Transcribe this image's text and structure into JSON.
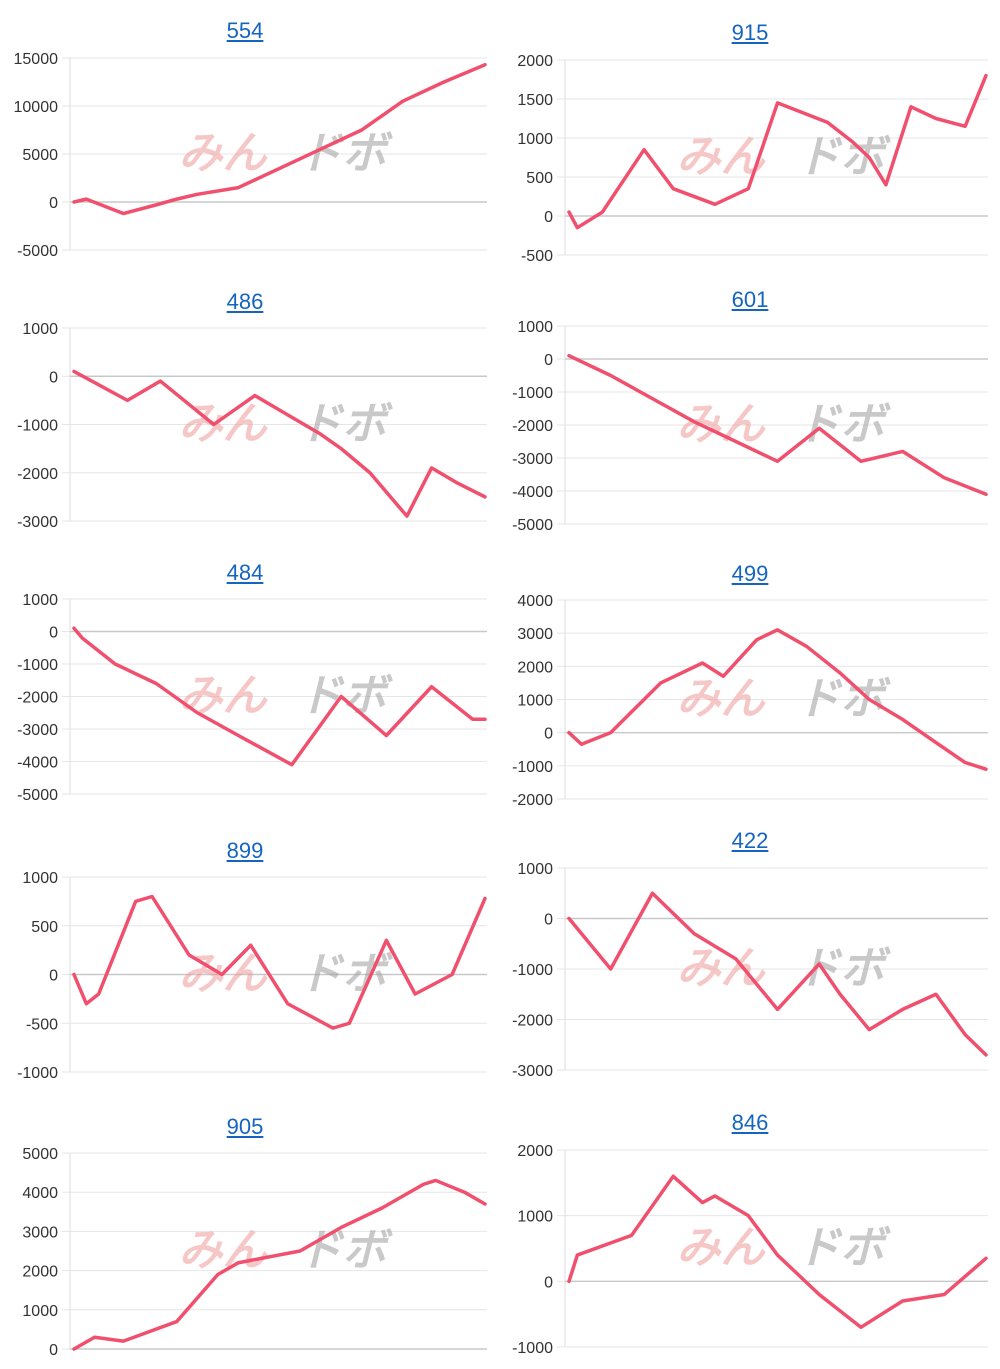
{
  "chart_data": [
    {
      "type": "line",
      "title": "554",
      "ylim": [
        -5000,
        15000
      ],
      "yticks": [
        15000,
        10000,
        5000,
        0,
        -5000
      ],
      "x": [
        0,
        3,
        12,
        20,
        25,
        30,
        40,
        50,
        60,
        65,
        70,
        80,
        90,
        100
      ],
      "values": [
        0,
        300,
        -1200,
        -300,
        300,
        800,
        1500,
        3500,
        5500,
        6500,
        7500,
        10500,
        12500,
        14300
      ]
    },
    {
      "type": "line",
      "title": "915",
      "ylim": [
        -500,
        2000
      ],
      "yticks": [
        2000,
        1500,
        1000,
        500,
        0,
        -500
      ],
      "x": [
        0,
        2,
        8,
        18,
        25,
        35,
        43,
        50,
        62,
        68,
        72,
        76,
        82,
        88,
        95,
        100
      ],
      "values": [
        50,
        -150,
        50,
        850,
        350,
        150,
        350,
        1450,
        1200,
        950,
        750,
        400,
        1400,
        1250,
        1150,
        1800
      ]
    },
    {
      "type": "line",
      "title": "486",
      "ylim": [
        -3000,
        1000
      ],
      "yticks": [
        1000,
        0,
        -1000,
        -2000,
        -3000
      ],
      "x": [
        0,
        13,
        21,
        34,
        44,
        52,
        60,
        65,
        72,
        81,
        87,
        93,
        100
      ],
      "values": [
        100,
        -500,
        -100,
        -1000,
        -400,
        -800,
        -1200,
        -1500,
        -2000,
        -2900,
        -1900,
        -2200,
        -2500
      ]
    },
    {
      "type": "line",
      "title": "601",
      "ylim": [
        -5000,
        1000
      ],
      "yticks": [
        1000,
        0,
        -1000,
        -2000,
        -3000,
        -4000,
        -5000
      ],
      "x": [
        0,
        10,
        20,
        30,
        40,
        50,
        60,
        70,
        80,
        90,
        100
      ],
      "values": [
        100,
        -500,
        -1200,
        -1900,
        -2500,
        -3100,
        -2100,
        -3100,
        -2800,
        -3600,
        -4100
      ]
    },
    {
      "type": "line",
      "title": "484",
      "ylim": [
        -5000,
        1000
      ],
      "yticks": [
        1000,
        0,
        -1000,
        -2000,
        -3000,
        -4000,
        -5000
      ],
      "x": [
        0,
        2,
        10,
        20,
        30,
        40,
        53,
        65,
        76,
        87,
        97,
        100
      ],
      "values": [
        100,
        -200,
        -1000,
        -1600,
        -2500,
        -3200,
        -4100,
        -2000,
        -3200,
        -1700,
        -2700,
        -2700
      ]
    },
    {
      "type": "line",
      "title": "499",
      "ylim": [
        -2000,
        4000
      ],
      "yticks": [
        4000,
        3000,
        2000,
        1000,
        0,
        -1000,
        -2000
      ],
      "x": [
        0,
        3,
        10,
        22,
        32,
        37,
        45,
        50,
        57,
        65,
        72,
        80,
        88,
        95,
        100
      ],
      "values": [
        0,
        -350,
        0,
        1500,
        2100,
        1700,
        2800,
        3100,
        2600,
        1800,
        1000,
        400,
        -300,
        -900,
        -1100
      ]
    },
    {
      "type": "line",
      "title": "899",
      "ylim": [
        -1000,
        1000
      ],
      "yticks": [
        1000,
        500,
        0,
        -500,
        -1000
      ],
      "x": [
        0,
        3,
        6,
        15,
        19,
        28,
        36,
        43,
        52,
        63,
        67,
        76,
        83,
        92,
        100
      ],
      "values": [
        0,
        -300,
        -200,
        750,
        800,
        200,
        0,
        300,
        -300,
        -550,
        -500,
        350,
        -200,
        0,
        780
      ]
    },
    {
      "type": "line",
      "title": "422",
      "ylim": [
        -3000,
        1000
      ],
      "yticks": [
        1000,
        0,
        -1000,
        -2000,
        -3000
      ],
      "x": [
        0,
        10,
        20,
        30,
        40,
        50,
        60,
        65,
        72,
        80,
        88,
        95,
        100
      ],
      "values": [
        0,
        -1000,
        500,
        -300,
        -800,
        -1800,
        -900,
        -1500,
        -2200,
        -1800,
        -1500,
        -2300,
        -2700
      ]
    },
    {
      "type": "line",
      "title": "905",
      "ylim": [
        0,
        5000
      ],
      "yticks": [
        5000,
        4000,
        3000,
        2000,
        1000,
        0
      ],
      "x": [
        0,
        5,
        12,
        25,
        35,
        40,
        45,
        55,
        65,
        75,
        85,
        88,
        95,
        100
      ],
      "values": [
        0,
        300,
        200,
        700,
        1900,
        2200,
        2300,
        2500,
        3100,
        3600,
        4200,
        4300,
        4000,
        3700
      ]
    },
    {
      "type": "line",
      "title": "846",
      "ylim": [
        -1000,
        2000
      ],
      "yticks": [
        2000,
        1000,
        0,
        -1000
      ],
      "x": [
        0,
        2,
        15,
        25,
        32,
        35,
        43,
        50,
        60,
        70,
        80,
        90,
        100
      ],
      "values": [
        0,
        400,
        700,
        1600,
        1200,
        1300,
        1000,
        400,
        -200,
        -700,
        -300,
        -200,
        350
      ]
    }
  ],
  "watermark": {
    "part1": "みん",
    "part2": "ドボ"
  },
  "colors": {
    "line": "#f0506e",
    "title": "#1565c0",
    "grid": "#e6e6e6"
  }
}
